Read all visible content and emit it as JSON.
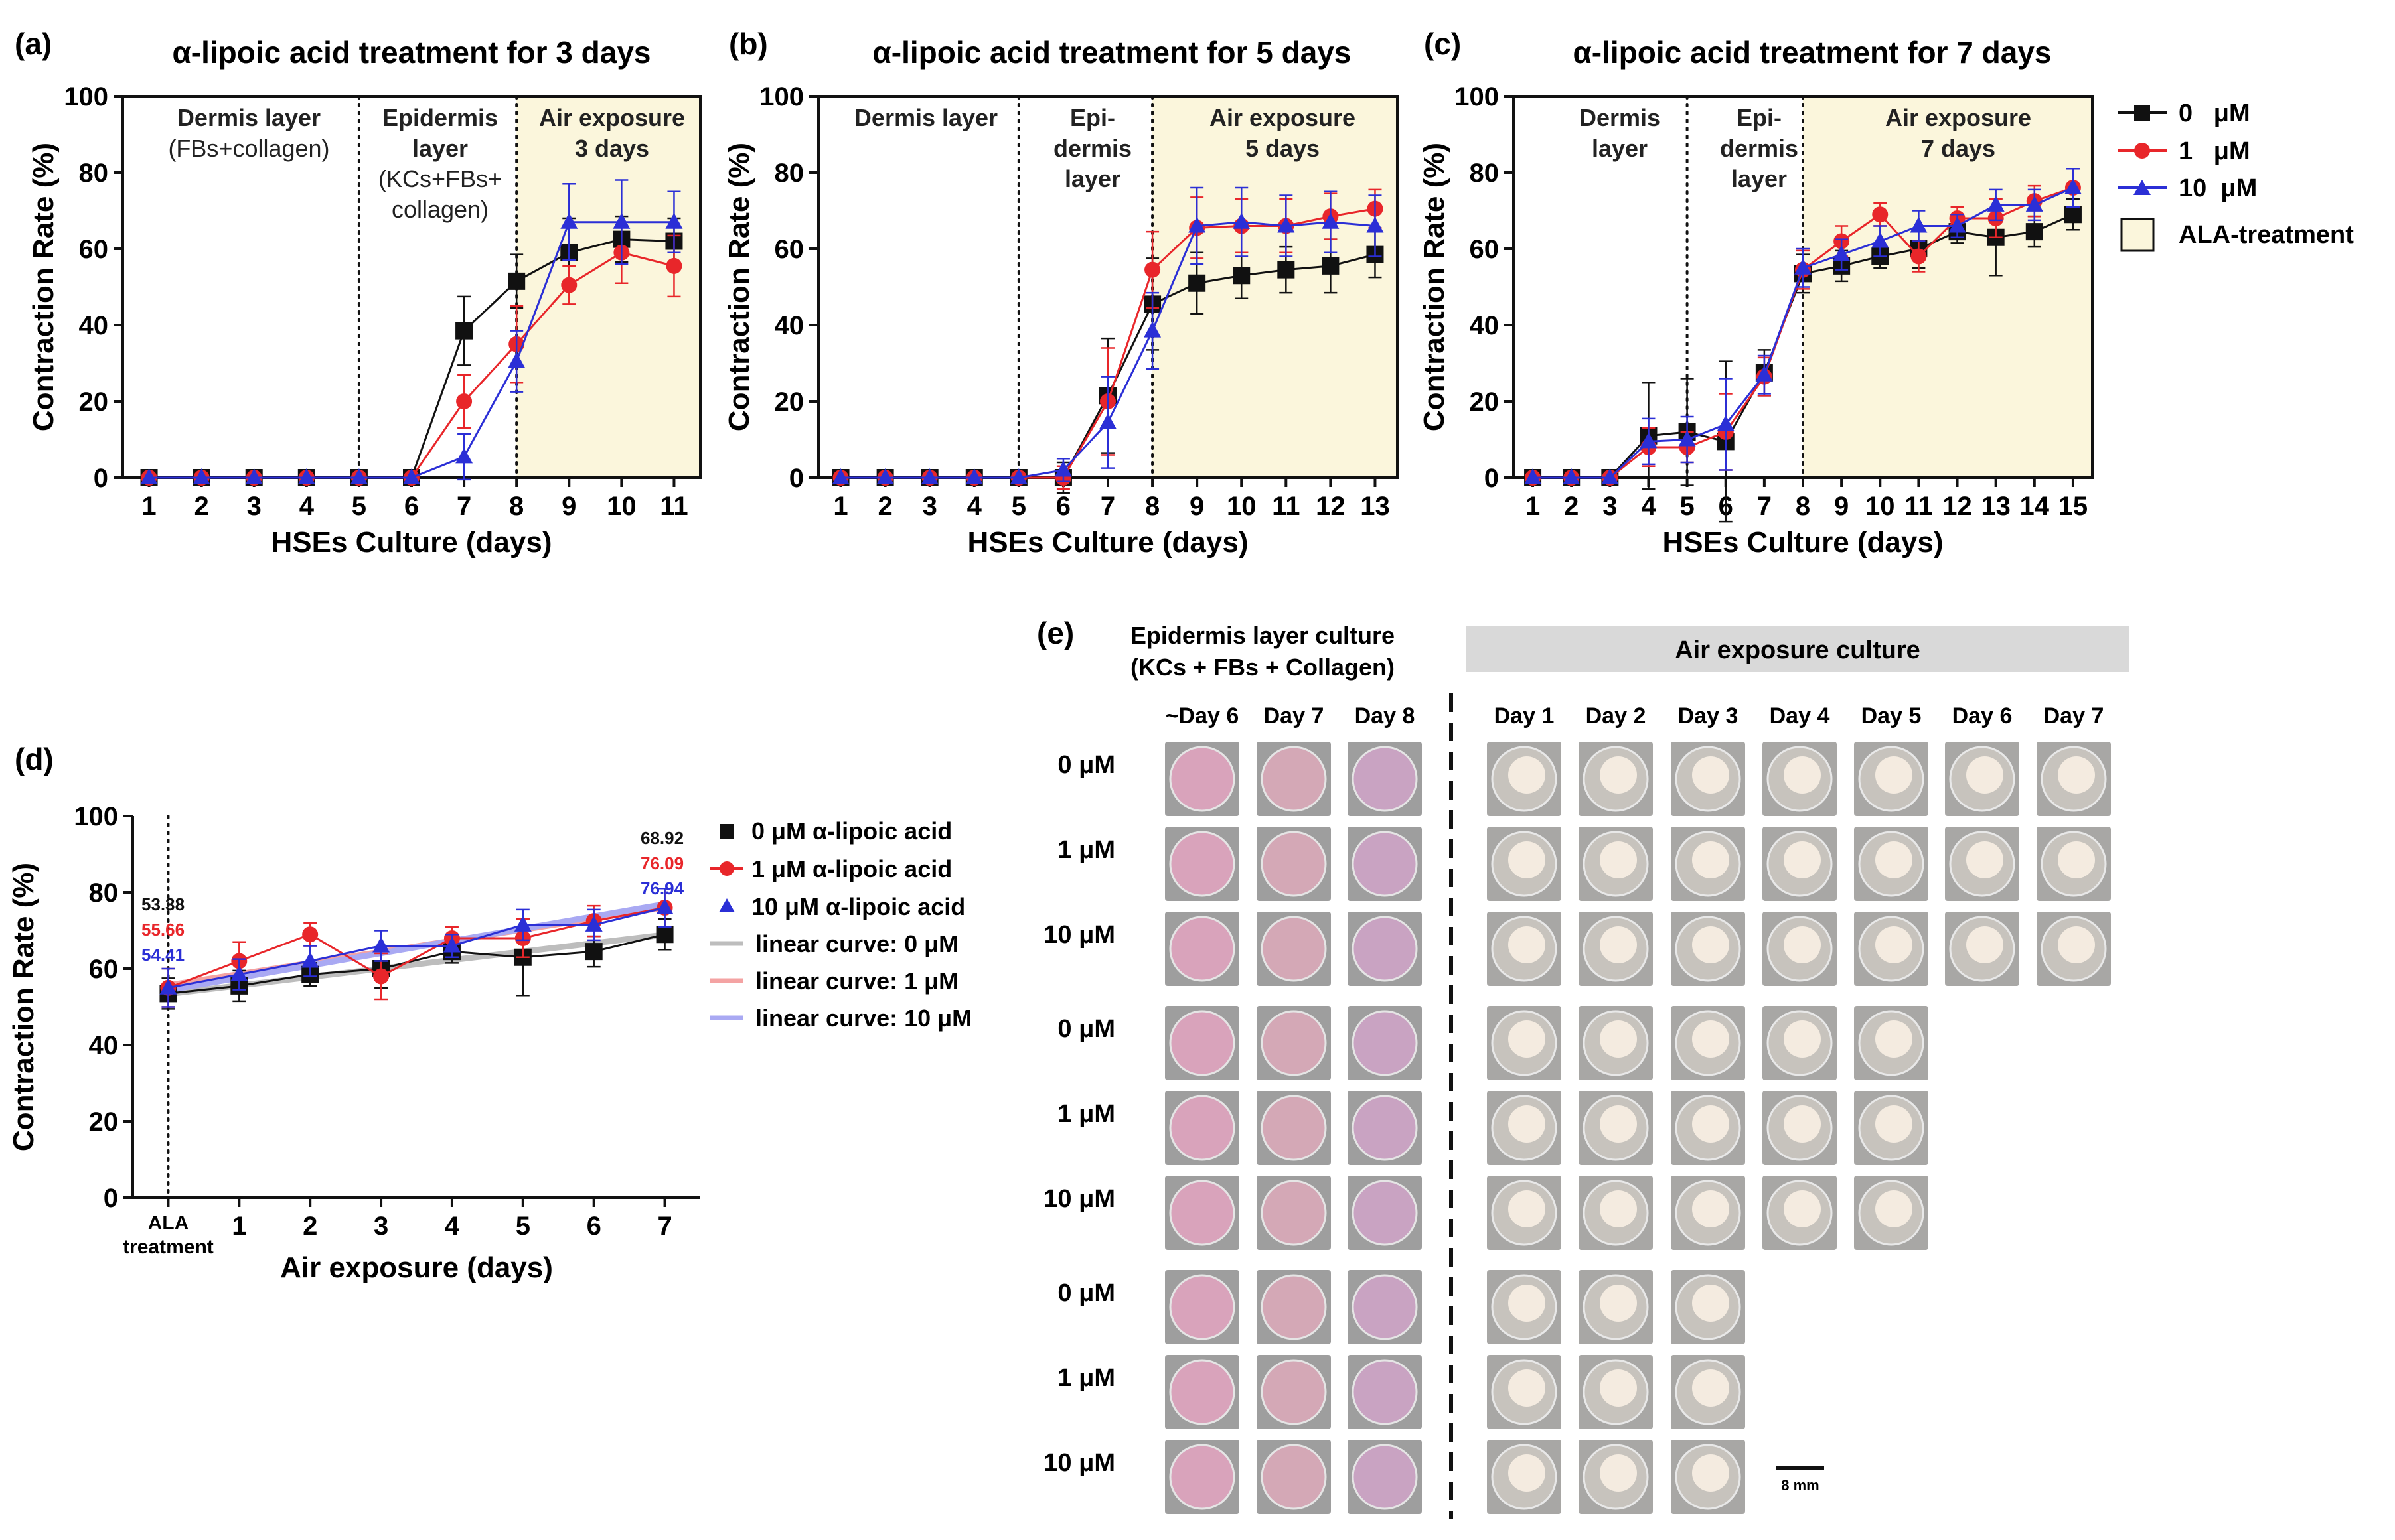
{
  "colors": {
    "black": "#111111",
    "red": "#e8262a",
    "blue": "#2b2fd6",
    "air_shade": "#fbf6dc",
    "lin0": "#bdbdbd",
    "lin1": "#f4a3a3",
    "lin10": "#a9a9f3"
  },
  "panels": {
    "a": {
      "letter": "(a)",
      "title": "α-lipoic acid treatment for 3 days"
    },
    "b": {
      "letter": "(b)",
      "title": "α-lipoic acid treatment for 5 days"
    },
    "c": {
      "letter": "(c)",
      "title": "α-lipoic acid treatment for 7 days"
    },
    "d": {
      "letter": "(d)"
    },
    "e": {
      "letter": "(e)"
    }
  },
  "stage_labels": {
    "a": {
      "dermis": [
        "Dermis layer",
        "(FBs+collagen)"
      ],
      "epidermis": [
        "Epidermis",
        "layer",
        "(KCs+FBs+",
        "collagen)"
      ],
      "air": [
        "Air exposure",
        "3 days"
      ]
    },
    "b": {
      "dermis": [
        "Dermis layer"
      ],
      "epidermis": [
        "Epi-",
        "dermis",
        "layer"
      ],
      "air": [
        "Air exposure",
        "5 days"
      ]
    },
    "c": {
      "dermis": [
        "Dermis",
        "layer"
      ],
      "epidermis": [
        "Epi-",
        "dermis",
        "layer"
      ],
      "air": [
        "Air exposure",
        "7 days"
      ]
    }
  },
  "legend_abc": {
    "items": [
      "0   μM",
      "1   μM",
      "10  μM"
    ],
    "shade": "ALA-treatment"
  },
  "legend_d": {
    "items": [
      "0 μM α-lipoic acid",
      "1 μM α-lipoic acid",
      "10 μM α-lipoic acid",
      "linear curve: 0 μM",
      "linear curve: 1 μM",
      "linear curve: 10 μM"
    ]
  },
  "chart_data": [
    {
      "id": "a",
      "type": "line",
      "title": "α-lipoic acid treatment for 3 days",
      "xlabel": "HSEs Culture (days)",
      "ylabel": "Contraction Rate (%)",
      "ylim": [
        0,
        100
      ],
      "yticks": [
        0,
        20,
        40,
        60,
        80,
        100
      ],
      "x": [
        1,
        2,
        3,
        4,
        5,
        6,
        7,
        8,
        9,
        10,
        11
      ],
      "dividers": [
        5,
        8
      ],
      "shade_from": 8,
      "series": [
        {
          "name": "0 μM",
          "values": [
            0,
            0,
            0,
            0,
            0,
            0,
            38.5,
            51.5,
            59,
            62.5,
            62
          ],
          "err": [
            0,
            0,
            0,
            0,
            0,
            0,
            9,
            7,
            9,
            6,
            6
          ]
        },
        {
          "name": "1 μM",
          "values": [
            0,
            0,
            0,
            0,
            0,
            0,
            20,
            35,
            50.5,
            59,
            55.5
          ],
          "err": [
            0,
            0,
            0,
            0,
            0,
            0,
            7,
            10,
            5,
            8,
            8
          ]
        },
        {
          "name": "10 μM",
          "values": [
            0,
            0,
            0,
            0,
            0,
            0,
            5.5,
            30.5,
            67,
            67,
            67
          ],
          "err": [
            0,
            0,
            0,
            0,
            0,
            0,
            6,
            8,
            10,
            11,
            8
          ]
        }
      ]
    },
    {
      "id": "b",
      "type": "line",
      "title": "α-lipoic acid treatment for 5 days",
      "xlabel": "HSEs Culture (days)",
      "ylabel": "Contraction Rate (%)",
      "ylim": [
        0,
        100
      ],
      "yticks": [
        0,
        20,
        40,
        60,
        80,
        100
      ],
      "x": [
        1,
        2,
        3,
        4,
        5,
        6,
        7,
        8,
        9,
        10,
        11,
        12,
        13
      ],
      "dividers": [
        5,
        8
      ],
      "shade_from": 8,
      "series": [
        {
          "name": "0 μM",
          "values": [
            0,
            0,
            0,
            0,
            0,
            0,
            21.5,
            45.5,
            51,
            53,
            54.5,
            55.5,
            58.5
          ],
          "err": [
            0,
            0,
            0,
            0,
            0,
            4,
            15,
            12,
            8,
            6,
            6,
            7,
            6
          ]
        },
        {
          "name": "1 μM",
          "values": [
            0,
            0,
            0,
            0,
            0,
            0,
            20,
            54.5,
            65.5,
            66,
            66,
            68.5,
            70.5
          ],
          "err": [
            0,
            0,
            0,
            0,
            0,
            3,
            14,
            10,
            8,
            7,
            7,
            6,
            5
          ]
        },
        {
          "name": "10 μM",
          "values": [
            0,
            0,
            0,
            0,
            0,
            2,
            14.5,
            38.5,
            66,
            67,
            66,
            67,
            66
          ],
          "err": [
            0,
            0,
            0,
            0,
            0,
            3,
            12,
            10,
            10,
            9,
            8,
            8,
            8
          ]
        }
      ]
    },
    {
      "id": "c",
      "type": "line",
      "title": "α-lipoic acid treatment for 7 days",
      "xlabel": "HSEs Culture (days)",
      "ylabel": "Contraction Rate (%)",
      "ylim": [
        0,
        100
      ],
      "yticks": [
        0,
        20,
        40,
        60,
        80,
        100
      ],
      "x": [
        1,
        2,
        3,
        4,
        5,
        6,
        7,
        8,
        9,
        10,
        11,
        12,
        13,
        14,
        15
      ],
      "dividers": [
        5,
        8
      ],
      "shade_from": 8,
      "series": [
        {
          "name": "0 μM",
          "values": [
            0,
            0,
            0,
            11,
            12,
            9.5,
            27.5,
            53.5,
            55.5,
            58,
            60,
            64.5,
            63,
            64.5,
            69
          ],
          "err": [
            0,
            0,
            0,
            14,
            14,
            21,
            6,
            5,
            4,
            3,
            5,
            3,
            10,
            4,
            4
          ]
        },
        {
          "name": "1 μM",
          "values": [
            0,
            0,
            0,
            8,
            8,
            12,
            26.5,
            54.5,
            62,
            69,
            58,
            68,
            68,
            72.5,
            76
          ],
          "err": [
            0,
            0,
            0,
            5,
            4,
            10,
            5,
            5,
            4,
            3,
            4,
            3,
            5,
            4,
            5
          ]
        },
        {
          "name": "10 μM",
          "values": [
            0,
            0,
            0,
            9.5,
            10,
            14,
            27,
            55,
            58.5,
            62,
            66,
            66,
            71.5,
            71.5,
            76
          ],
          "err": [
            0,
            0,
            0,
            6,
            6,
            12,
            5,
            5,
            4,
            4,
            4,
            3,
            4,
            4,
            5
          ]
        }
      ]
    },
    {
      "id": "d",
      "type": "line",
      "title": "",
      "xlabel": "Air exposure (days)",
      "ylabel": "Contraction Rate (%)",
      "ylim": [
        0,
        100
      ],
      "yticks": [
        0,
        20,
        40,
        60,
        80,
        100
      ],
      "categories": [
        "ALA treatment",
        "1",
        "2",
        "3",
        "4",
        "5",
        "6",
        "7"
      ],
      "x": [
        0,
        1,
        2,
        3,
        4,
        5,
        6,
        7
      ],
      "dividers": [
        0
      ],
      "series": [
        {
          "name": "0 μM α-lipoic acid",
          "values": [
            53.5,
            55.5,
            58.5,
            60,
            64.5,
            63,
            64.5,
            69
          ],
          "err": [
            4,
            4,
            3,
            5,
            3,
            10,
            4,
            4
          ]
        },
        {
          "name": "1 μM α-lipoic acid",
          "values": [
            55,
            62,
            69,
            58,
            68,
            68,
            72.5,
            76
          ],
          "err": [
            5,
            5,
            3,
            6,
            3,
            5,
            4,
            5
          ]
        },
        {
          "name": "10 μM α-lipoic acid",
          "values": [
            55,
            58.5,
            62,
            66,
            66,
            71.5,
            71.5,
            76
          ],
          "err": [
            5,
            4,
            4,
            4,
            3,
            4,
            4,
            5
          ]
        }
      ],
      "fits": [
        {
          "name": "linear curve: 0 μM",
          "start": 53.38,
          "end": 68.92
        },
        {
          "name": "linear curve: 1 μM",
          "start": 55.66,
          "end": 76.09
        },
        {
          "name": "linear curve: 10 μM",
          "start": 54.41,
          "end": 76.94
        }
      ],
      "annotations": {
        "start": [
          "53.38",
          "55.66",
          "54.41"
        ],
        "end": [
          "68.92",
          "76.09",
          "76.94"
        ]
      }
    }
  ],
  "panel_e": {
    "header_epidermis": [
      "Epidermis layer culture",
      "(KCs + FBs + Collagen)"
    ],
    "header_air": "Air exposure culture",
    "col_labels_epi": [
      "~Day 6",
      "Day 7",
      "Day 8"
    ],
    "col_labels_air": [
      "Day 1",
      "Day 2",
      "Day 3",
      "Day 4",
      "Day 5",
      "Day 6",
      "Day 7"
    ],
    "row_labels": [
      "0 μM",
      "1 μM",
      "10 μM",
      "0 μM",
      "1 μM",
      "10 μM",
      "0 μM",
      "1 μM",
      "10 μM"
    ],
    "air_cols_per_group": [
      7,
      5,
      3
    ],
    "scale_bar": "8 mm"
  }
}
